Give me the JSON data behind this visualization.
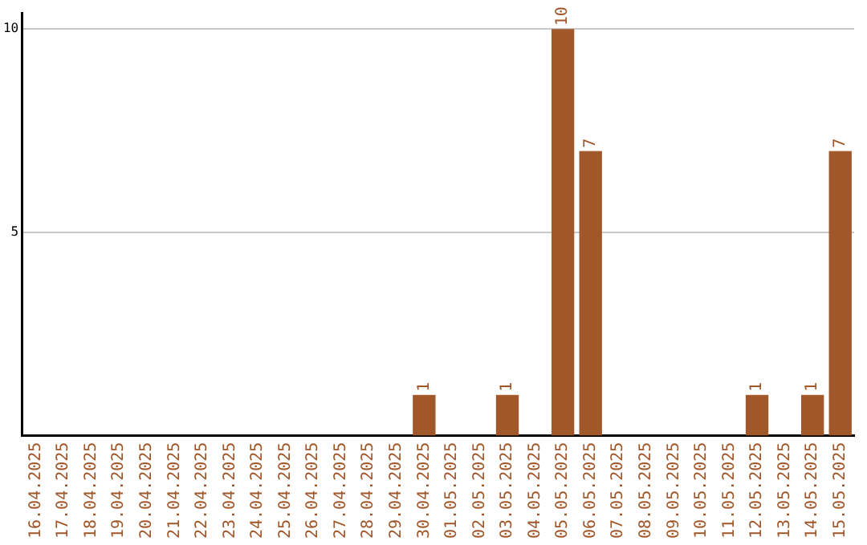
{
  "chart_data": {
    "type": "bar",
    "categories": [
      "16.04.2025",
      "17.04.2025",
      "18.04.2025",
      "19.04.2025",
      "20.04.2025",
      "21.04.2025",
      "22.04.2025",
      "23.04.2025",
      "24.04.2025",
      "25.04.2025",
      "26.04.2025",
      "27.04.2025",
      "28.04.2025",
      "29.04.2025",
      "30.04.2025",
      "01.05.2025",
      "02.05.2025",
      "03.05.2025",
      "04.05.2025",
      "05.05.2025",
      "06.05.2025",
      "07.05.2025",
      "08.05.2025",
      "09.05.2025",
      "10.05.2025",
      "11.05.2025",
      "12.05.2025",
      "13.05.2025",
      "14.05.2025",
      "15.05.2025"
    ],
    "values": [
      0,
      0,
      0,
      0,
      0,
      0,
      0,
      0,
      0,
      0,
      0,
      0,
      0,
      0,
      1,
      0,
      0,
      1,
      0,
      10,
      7,
      0,
      0,
      0,
      0,
      0,
      1,
      0,
      1,
      7
    ],
    "value_labels": [
      null,
      null,
      null,
      null,
      null,
      null,
      null,
      null,
      null,
      null,
      null,
      null,
      null,
      null,
      "1",
      null,
      null,
      "1",
      null,
      "10",
      "7",
      null,
      null,
      null,
      null,
      null,
      "1",
      null,
      "1",
      "7"
    ],
    "color": "#a0572a",
    "ylim": [
      0,
      10.4
    ],
    "yticks": [
      5,
      10
    ],
    "grid": "y",
    "legend": false
  }
}
